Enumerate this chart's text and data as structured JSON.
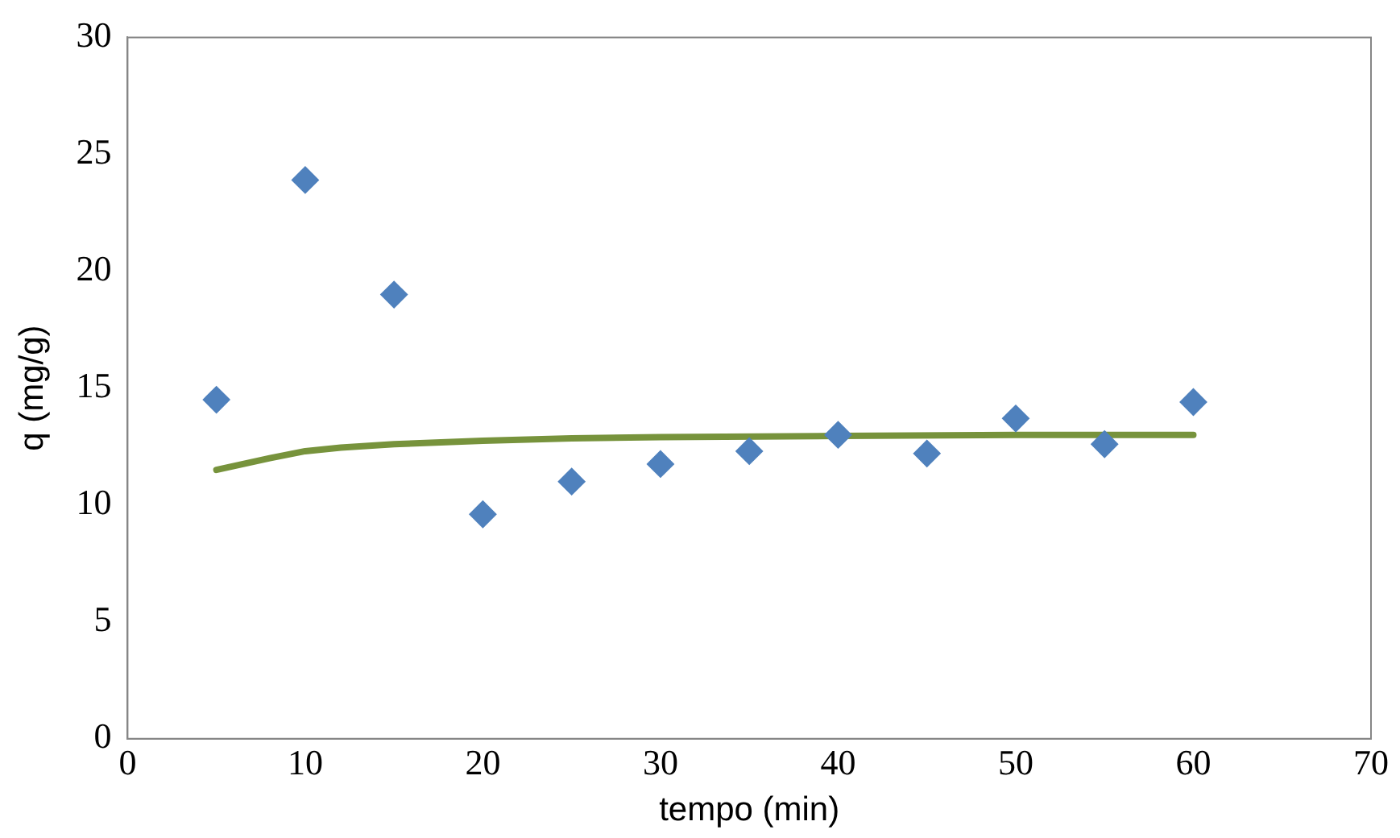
{
  "chart_data": {
    "type": "scatter",
    "xlabel": "tempo (min)",
    "ylabel": "q (mg/g)",
    "xlim": [
      0,
      70
    ],
    "xticks": [
      0,
      10,
      20,
      30,
      40,
      50,
      60,
      70
    ],
    "ylim": [
      0,
      30
    ],
    "yticks": [
      0,
      5,
      10,
      15,
      20,
      25,
      30
    ],
    "grid": false,
    "legend": false,
    "series": [
      {
        "type": "scatter",
        "color": "#4f81bd",
        "marker": "diamond",
        "x": [
          5,
          10,
          15,
          20,
          25,
          30,
          35,
          40,
          45,
          50,
          55,
          60
        ],
        "values": [
          14.5,
          23.9,
          19.0,
          9.6,
          11.0,
          11.75,
          12.3,
          13.0,
          12.2,
          13.7,
          12.6,
          14.4
        ]
      },
      {
        "type": "line",
        "color": "#77933c",
        "marker": "none",
        "line_style": "solid",
        "x": [
          5,
          8,
          10,
          12,
          15,
          20,
          25,
          30,
          40,
          50,
          60
        ],
        "values": [
          11.5,
          12.0,
          12.3,
          12.45,
          12.6,
          12.75,
          12.85,
          12.9,
          12.95,
          13.0,
          13.0
        ]
      }
    ]
  }
}
